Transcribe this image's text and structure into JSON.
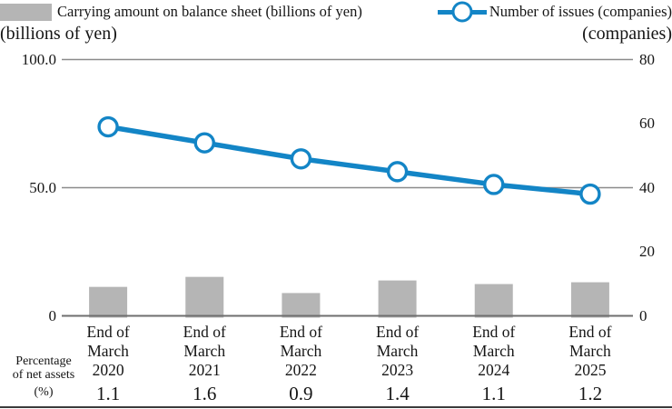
{
  "legend": {
    "bar": {
      "label": "Carrying amount on balance sheet (billions of yen)"
    },
    "line": {
      "label": "Number of issues (companies)"
    }
  },
  "colors": {
    "bar": "#b5b5b5",
    "line": "#1385c6",
    "marker_fill": "#ffffff",
    "grid": "#8b8b8b",
    "baseline": "#6f6f6f",
    "text": "#151515",
    "bottom_border": "#3b3b3b"
  },
  "chart_data": {
    "type": "bar+line combo",
    "categories": [
      "End of March 2020",
      "End of March 2021",
      "End of March 2022",
      "End of March 2023",
      "End of March 2024",
      "End of March 2025"
    ],
    "category_lines": [
      [
        "End of",
        "March",
        "2020"
      ],
      [
        "End of",
        "March",
        "2021"
      ],
      [
        "End of",
        "March",
        "2022"
      ],
      [
        "End of",
        "March",
        "2023"
      ],
      [
        "End of",
        "March",
        "2024"
      ],
      [
        "End of",
        "March",
        "2025"
      ]
    ],
    "series": [
      {
        "name": "Carrying amount on balance sheet (billions of yen)",
        "type": "bar",
        "axis": "left",
        "values": [
          11.3,
          15.2,
          8.9,
          13.8,
          12.4,
          13.1
        ]
      },
      {
        "name": "Number of issues (companies)",
        "type": "line",
        "axis": "right",
        "values": [
          59,
          54,
          49,
          45,
          41,
          38
        ]
      }
    ],
    "left_axis": {
      "caption": "(billions of yen)",
      "range": [
        0,
        100
      ],
      "ticks": [
        0,
        50,
        100
      ],
      "tick_labels": [
        "0",
        "50.0",
        "100.0"
      ],
      "gridlines": true
    },
    "right_axis": {
      "caption": "(companies)",
      "range": [
        0,
        80
      ],
      "ticks": [
        0,
        20,
        40,
        60,
        80
      ],
      "tick_labels": [
        "0",
        "20",
        "40",
        "60",
        "80"
      ],
      "gridlines": false
    },
    "legend_position": "top",
    "secondary_row": {
      "label": "Percentage of net assets (%)",
      "label_lines": [
        "Percentage",
        "of net assets",
        "(%)"
      ],
      "values": [
        "1.1",
        "1.6",
        "0.9",
        "1.4",
        "1.1",
        "1.2"
      ]
    }
  }
}
